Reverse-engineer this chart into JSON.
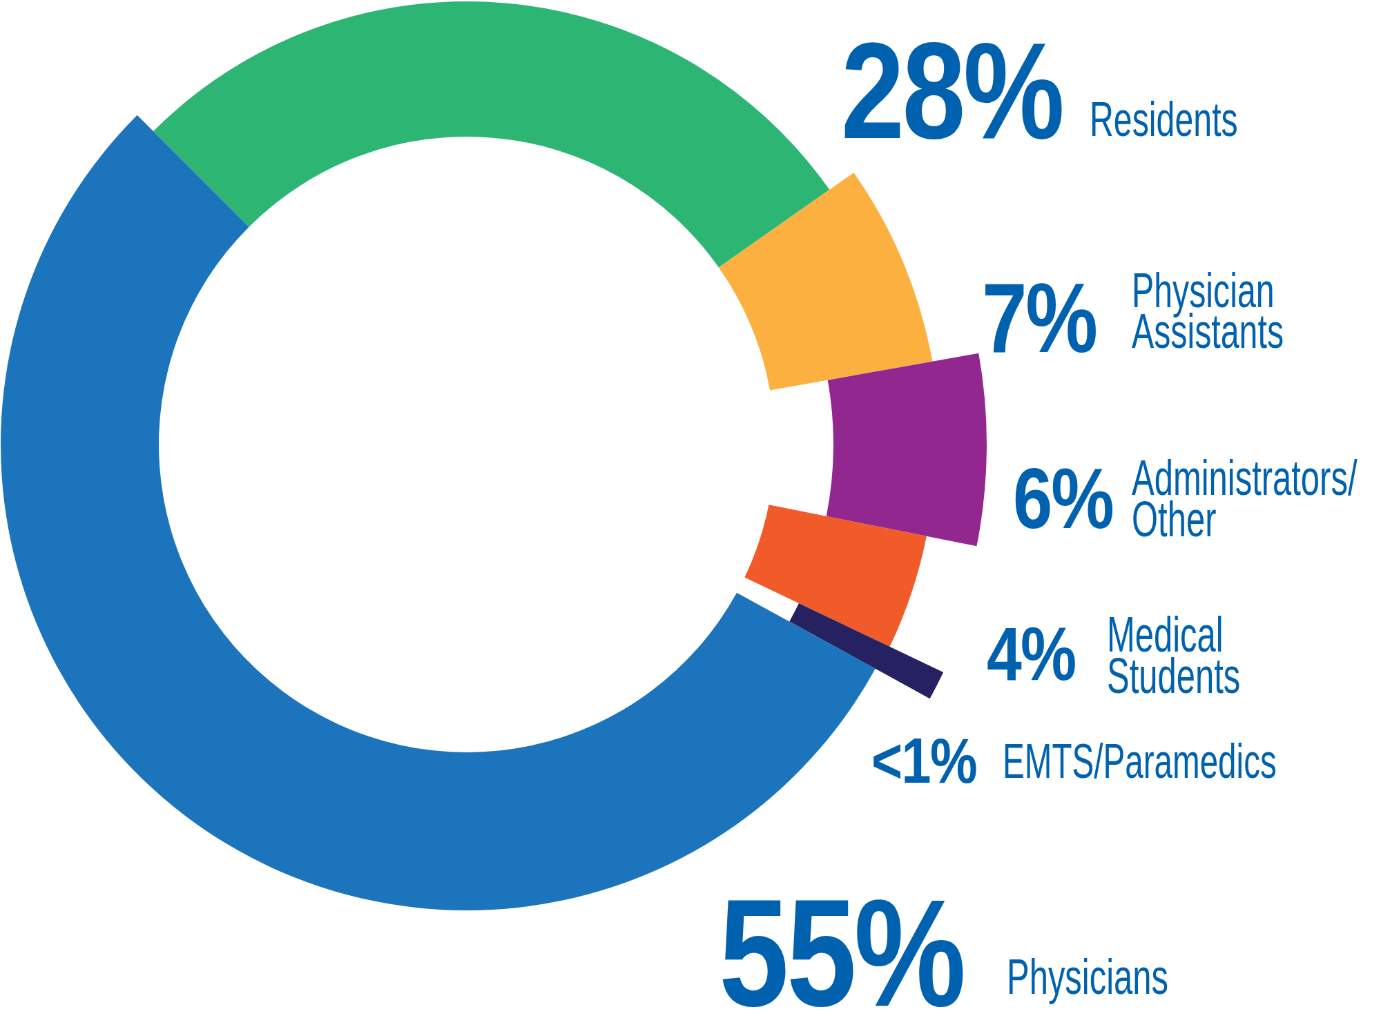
{
  "chart_data": {
    "type": "donut",
    "categories": [
      "Residents",
      "Physician Assistants",
      "Administrators/ Other",
      "Medical Students",
      "EMTS/Paramedics",
      "Physicians"
    ],
    "values": [
      28,
      7,
      6,
      4,
      0.9,
      55
    ],
    "value_labels": [
      "28%",
      "7%",
      "6%",
      "4%",
      "<1%",
      "55%"
    ],
    "colors": [
      "#2db673",
      "#fbb040",
      "#92278f",
      "#f15a29",
      "#262262",
      "#1c75bc"
    ]
  }
}
